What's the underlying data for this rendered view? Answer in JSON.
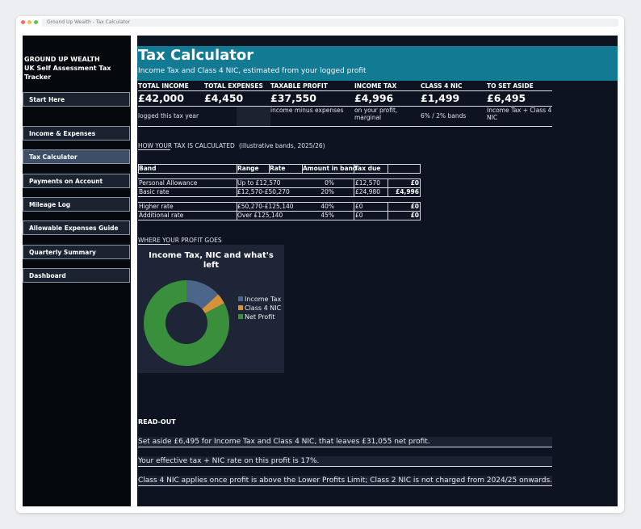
{
  "window": {
    "tab_title": "Ground Up Wealth - Tax Calculator"
  },
  "sidebar": {
    "brand": "GROUND UP WEALTH",
    "subtitle_lines": [
      "UK Self Assessment Tax",
      "Tracker"
    ],
    "nav": [
      "Start Here",
      "Income & Expenses",
      "Tax Calculator",
      "Payments on Account",
      "Mileage Log",
      "Allowable Expenses Guide",
      "Quarterly Summary",
      "Dashboard"
    ],
    "active_index": 2
  },
  "header": {
    "title": "Tax Calculator",
    "subtitle": "Income Tax and Class 4 NIC, estimated from your logged profit"
  },
  "kpis": [
    {
      "label": "TOTAL INCOME",
      "value": "£42,000",
      "note": "logged this tax year"
    },
    {
      "label": "TOTAL EXPENSES",
      "value": "£4,450"
    },
    {
      "label": "TAXABLE PROFIT",
      "value": "£37,550",
      "note": "income minus expenses"
    },
    {
      "label": "INCOME TAX",
      "value": "£4,996",
      "note": "on your profit, marginal"
    },
    {
      "label": "CLASS 4 NIC",
      "value": "£1,499",
      "note": "6% / 2% bands"
    },
    {
      "label": "TO SET ASIDE",
      "value": "£6,495",
      "note": "Income Tax + Class 4 NIC"
    }
  ],
  "tax_table": {
    "heading": "HOW YOUR TAX IS CALCULATED",
    "note": "(illustrative bands, 2025/26)",
    "columns": [
      "Band",
      "Range",
      "Rate",
      "Amount in band",
      "Tax due"
    ],
    "rows": [
      [
        "Personal Allowance",
        "Up to £12,570",
        "0%",
        "£12,570",
        "£0"
      ],
      [
        "Basic rate",
        "£12,570-£50,270",
        "20%",
        "£24,980",
        "£4,996"
      ],
      [
        "Higher rate",
        "£50,270-£125,140",
        "40%",
        "£0",
        "£0"
      ],
      [
        "Additional rate",
        "Over £125,140",
        "45%",
        "£0",
        "£0"
      ]
    ]
  },
  "profit_section": {
    "heading": "WHERE YOUR PROFIT GOES"
  },
  "chart_data": {
    "type": "pie",
    "donut": true,
    "title": "Income Tax, NIC and what's left",
    "categories": [
      "Income Tax",
      "Class 4 NIC",
      "Net Profit"
    ],
    "values": [
      4996,
      1499,
      31055
    ],
    "colors": [
      "#4b6688",
      "#d4923a",
      "#3a8f3c"
    ]
  },
  "readout": {
    "heading": "READ-OUT",
    "lines": [
      "Set aside £6,495 for Income Tax and Class 4 NIC, that leaves £31,055 net profit.",
      "Your effective tax + NIC rate on this profit is 17%.",
      "Class 4 NIC applies once profit is above the Lower Profits Limit; Class 2 NIC is not charged from 2024/25 onwards."
    ]
  }
}
